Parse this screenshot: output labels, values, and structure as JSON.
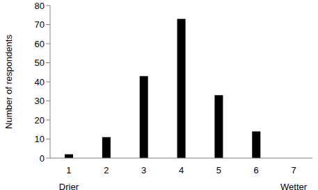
{
  "chart_data": {
    "type": "bar",
    "y_label": "Number of respondents",
    "categories": [
      "1",
      "2",
      "3",
      "4",
      "5",
      "6",
      "7"
    ],
    "values": [
      2,
      11,
      43,
      73,
      33,
      14,
      0
    ],
    "color": "#000000",
    "ylim": [
      0,
      80
    ],
    "yticks": [
      0,
      10,
      20,
      30,
      40,
      50,
      60,
      70,
      80
    ],
    "grid": false,
    "annotations": [
      "Drier",
      "Wetter"
    ]
  }
}
